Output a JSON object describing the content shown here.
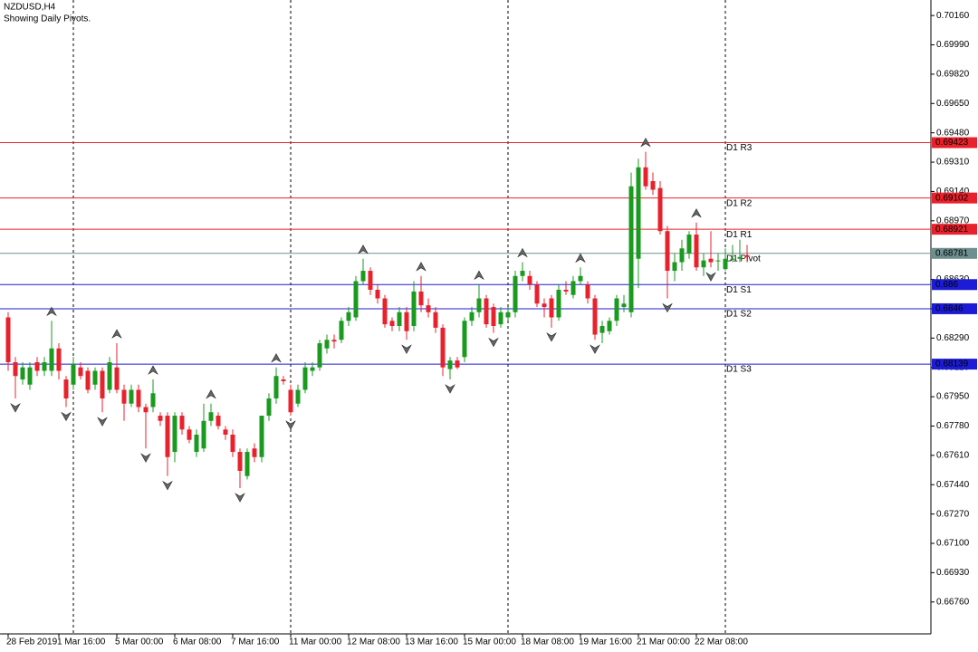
{
  "chart_data": {
    "type": "candlestick",
    "title": "NZDUSD,H4",
    "subtitle": "Showing Daily Pivots.",
    "categories": [
      "28 Feb 2019",
      null,
      null,
      null,
      null,
      null,
      null,
      "1 Mar 16:00",
      null,
      null,
      null,
      null,
      null,
      null,
      null,
      "5 Mar 00:00",
      null,
      null,
      null,
      null,
      null,
      null,
      null,
      "6 Mar 08:00",
      null,
      null,
      null,
      null,
      null,
      null,
      null,
      "7 Mar 16:00",
      null,
      null,
      null,
      null,
      null,
      null,
      null,
      "11 Mar 00:00",
      null,
      null,
      null,
      null,
      null,
      null,
      null,
      "12 Mar 08:00",
      null,
      null,
      null,
      null,
      null,
      null,
      null,
      "13 Mar 16:00",
      null,
      null,
      null,
      null,
      null,
      null,
      null,
      "15 Mar 00:00",
      null,
      null,
      null,
      null,
      null,
      null,
      null,
      "18 Mar 08:00",
      null,
      null,
      null,
      null,
      null,
      null,
      null,
      "19 Mar 16:00",
      null,
      null,
      null,
      null,
      null,
      null,
      null,
      "21 Mar 00:00",
      null,
      null,
      null,
      null,
      null,
      null,
      null,
      "22 Mar 08:00",
      null,
      null,
      null,
      null,
      null,
      null,
      null
    ],
    "open": [
      0.6841,
      0.6815,
      0.6805,
      0.6802,
      0.6815,
      0.681,
      0.681,
      0.6823,
      0.6805,
      0.6802,
      0.6812,
      0.681,
      0.6802,
      0.681,
      0.6799,
      0.6812,
      0.6799,
      0.6791,
      0.6799,
      0.6789,
      0.6789,
      0.6784,
      0.6784,
      0.6763,
      0.6784,
      0.6776,
      0.6763,
      0.6765,
      0.6781,
      0.6784,
      0.6776,
      0.6773,
      0.6763,
      0.6749,
      0.6765,
      0.676,
      0.6784,
      0.6794,
      0.6805,
      0.6799,
      0.6791,
      0.6799,
      0.681,
      0.6812,
      0.6823,
      0.6828,
      0.6828,
      0.6839,
      0.6841,
      0.6862,
      0.6868,
      0.6857,
      0.6852,
      0.6839,
      0.6836,
      0.6844,
      0.6836,
      0.6856,
      0.6848,
      0.6844,
      0.6835,
      0.6811,
      0.6816,
      0.6818,
      0.6839,
      0.6844,
      0.6852,
      0.6847,
      0.6837,
      0.6841,
      0.6844,
      0.6865,
      0.6865,
      0.686,
      0.6849,
      0.6852,
      0.6841,
      0.6857,
      0.6854,
      0.6862,
      0.686,
      0.6852,
      0.6832,
      0.6833,
      0.6839,
      0.6847,
      0.6844,
      0.6875,
      0.6928,
      0.692,
      0.6916,
      0.6891,
      0.6868,
      0.6873,
      0.6878,
      0.6889,
      0.687,
      0.6875,
      0.6874,
      0.6869,
      0.6875,
      0.6875,
      0.6877
    ],
    "high": [
      0.6844,
      0.6818,
      0.6815,
      0.6815,
      0.6818,
      0.6818,
      0.6839,
      0.6826,
      0.6807,
      0.6818,
      0.6815,
      0.6812,
      0.6812,
      0.6812,
      0.6818,
      0.6826,
      0.6802,
      0.6802,
      0.6802,
      0.6791,
      0.6805,
      0.6786,
      0.6786,
      0.6786,
      0.6786,
      0.6778,
      0.6776,
      0.6791,
      0.6791,
      0.6786,
      0.6778,
      0.6776,
      0.6765,
      0.6765,
      0.6768,
      0.6784,
      0.6797,
      0.6812,
      0.6807,
      0.6802,
      0.6802,
      0.6815,
      0.6815,
      0.6828,
      0.6831,
      0.6831,
      0.6841,
      0.6847,
      0.6865,
      0.6875,
      0.687,
      0.686,
      0.6854,
      0.6841,
      0.6847,
      0.6847,
      0.6862,
      0.6865,
      0.6852,
      0.6847,
      0.6837,
      0.6818,
      0.6818,
      0.6841,
      0.6847,
      0.686,
      0.6854,
      0.6849,
      0.6847,
      0.6847,
      0.6868,
      0.6873,
      0.6868,
      0.6862,
      0.6852,
      0.6854,
      0.686,
      0.6862,
      0.6865,
      0.687,
      0.6862,
      0.6854,
      0.6839,
      0.6841,
      0.6854,
      0.6854,
      0.6925,
      0.6933,
      0.6937,
      0.6925,
      0.692,
      0.6894,
      0.6878,
      0.6886,
      0.6891,
      0.6896,
      0.6878,
      0.6891,
      0.6878,
      0.6881,
      0.6883,
      0.6886,
      0.6883
    ],
    "low": [
      0.681,
      0.6794,
      0.6802,
      0.6799,
      0.6807,
      0.6807,
      0.6807,
      0.6805,
      0.6789,
      0.6799,
      0.6805,
      0.6797,
      0.6799,
      0.6786,
      0.6797,
      0.6797,
      0.6781,
      0.6789,
      0.6786,
      0.6765,
      0.6786,
      0.6778,
      0.6749,
      0.6757,
      0.6773,
      0.6768,
      0.676,
      0.6763,
      0.6778,
      0.6776,
      0.677,
      0.676,
      0.6742,
      0.6747,
      0.6757,
      0.6757,
      0.6781,
      0.6791,
      0.6802,
      0.6784,
      0.6789,
      0.6797,
      0.6807,
      0.681,
      0.682,
      0.6823,
      0.6826,
      0.6836,
      0.6839,
      0.686,
      0.6854,
      0.6849,
      0.6835,
      0.6833,
      0.6833,
      0.6828,
      0.6833,
      0.6844,
      0.6841,
      0.6832,
      0.6807,
      0.6805,
      0.6811,
      0.6815,
      0.6836,
      0.6841,
      0.6835,
      0.6832,
      0.6835,
      0.6839,
      0.6841,
      0.6862,
      0.6857,
      0.6847,
      0.6841,
      0.6835,
      0.6839,
      0.6854,
      0.6852,
      0.686,
      0.6849,
      0.6828,
      0.6826,
      0.6831,
      0.6836,
      0.6844,
      0.6841,
      0.6858,
      0.6915,
      0.6912,
      0.6889,
      0.6852,
      0.6862,
      0.6868,
      0.6875,
      0.6868,
      0.6865,
      0.687,
      0.6868,
      0.6868,
      0.6873,
      0.6873,
      0.6873
    ],
    "close": [
      0.6815,
      0.6807,
      0.6812,
      0.6812,
      0.681,
      0.6815,
      0.6823,
      0.681,
      0.6794,
      0.6814,
      0.6807,
      0.6799,
      0.681,
      0.6794,
      0.6815,
      0.6799,
      0.6791,
      0.6799,
      0.6789,
      0.6786,
      0.6797,
      0.6781,
      0.676,
      0.6784,
      0.6776,
      0.677,
      0.6773,
      0.6781,
      0.6786,
      0.6778,
      0.6773,
      0.6763,
      0.6752,
      0.6763,
      0.676,
      0.6784,
      0.6794,
      0.6807,
      0.6804,
      0.6786,
      0.6799,
      0.6812,
      0.6812,
      0.6826,
      0.6828,
      0.6827,
      0.6839,
      0.6844,
      0.6862,
      0.6868,
      0.6857,
      0.6852,
      0.6837,
      0.6836,
      0.6844,
      0.6833,
      0.6856,
      0.6848,
      0.6844,
      0.6835,
      0.6812,
      0.6816,
      0.6812,
      0.6839,
      0.6844,
      0.6852,
      0.6837,
      0.6836,
      0.6844,
      0.6844,
      0.6865,
      0.6868,
      0.686,
      0.6849,
      0.6847,
      0.6841,
      0.6857,
      0.6856,
      0.6862,
      0.6865,
      0.6852,
      0.6831,
      0.6836,
      0.6839,
      0.6852,
      0.6849,
      0.6917,
      0.6928,
      0.6917,
      0.6915,
      0.6891,
      0.6868,
      0.6873,
      0.6881,
      0.6889,
      0.687,
      0.6874,
      0.6873,
      0.6874,
      0.6875,
      0.6875,
      0.6876,
      0.6876
    ],
    "up_color": "#1a9a1f",
    "down_color": "#e8222c",
    "ylim": [
      0.66575,
      0.7025
    ],
    "yticks": [
      {
        "value": 0.7016,
        "label": "0.70160"
      },
      {
        "value": 0.6999,
        "label": "0.69990"
      },
      {
        "value": 0.6982,
        "label": "0.69820"
      },
      {
        "value": 0.6965,
        "label": "0.69650"
      },
      {
        "value": 0.6948,
        "label": "0.69480"
      },
      {
        "value": 0.6931,
        "label": "0.69310"
      },
      {
        "value": 0.6914,
        "label": "0.69140"
      },
      {
        "value": 0.6897,
        "label": "0.68970"
      },
      {
        "value": 0.6863,
        "label": "0.68630"
      },
      {
        "value": 0.6846,
        "label": "0.68460"
      },
      {
        "value": 0.6829,
        "label": "0.68290"
      },
      {
        "value": 0.6812,
        "label": "0.68120"
      },
      {
        "value": 0.6795,
        "label": "0.67950"
      },
      {
        "value": 0.6778,
        "label": "0.67780"
      },
      {
        "value": 0.6761,
        "label": "0.67610"
      },
      {
        "value": 0.6744,
        "label": "0.67440"
      },
      {
        "value": 0.6727,
        "label": "0.67270"
      },
      {
        "value": 0.671,
        "label": "0.67100"
      },
      {
        "value": 0.6693,
        "label": "0.66930"
      },
      {
        "value": 0.6676,
        "label": "0.66760"
      }
    ],
    "levels": [
      {
        "name": "D1 R3",
        "value": 0.69423,
        "color": "#e8222c"
      },
      {
        "name": "D1 R2",
        "value": 0.69102,
        "color": "#e8222c"
      },
      {
        "name": "D1 R1",
        "value": 0.68921,
        "color": "#e8222c"
      },
      {
        "name": "D1 Pivot",
        "value": 0.68781,
        "color": "#6e8f8f"
      },
      {
        "name": "D1 S1",
        "value": 0.686,
        "color": "#1c1cd6"
      },
      {
        "name": "D1 S2",
        "value": 0.6846,
        "color": "#1c1cd6"
      },
      {
        "name": "D1 S3",
        "value": 0.68139,
        "color": "#1c1cd6"
      }
    ],
    "separators": [
      9,
      39,
      69,
      99
    ],
    "fractals_up": [
      6,
      15,
      20,
      28,
      37,
      49,
      57,
      65,
      71,
      79,
      88,
      95
    ],
    "fractals_down": [
      1,
      8,
      13,
      19,
      22,
      32,
      39,
      55,
      61,
      67,
      75,
      81,
      91,
      97
    ]
  }
}
